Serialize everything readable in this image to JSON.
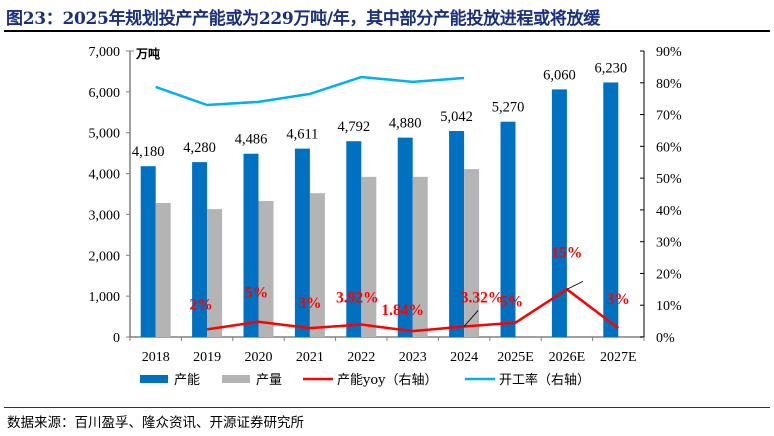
{
  "title": "图23：2025年规划投产产能或为229万吨/年，其中部分产能投放进程或将放缓",
  "source": "数据来源：百川盈孚、隆众资讯、开源证券研究所",
  "colors": {
    "capacity": "#0070c0",
    "output": "#b4b4b4",
    "yoy": "#ff0000",
    "utilization": "#00b0f0",
    "title": "#1a2f80"
  },
  "chart_data": {
    "type": "bar",
    "title": "2025年规划投产产能或为229万吨/年，其中部分产能投放进程或将放缓",
    "categories": [
      "2018",
      "2019",
      "2020",
      "2021",
      "2022",
      "2023",
      "2024",
      "2025E",
      "2026E",
      "2027E"
    ],
    "y_unit_label": "万吨",
    "ylim": [
      0,
      7000
    ],
    "y_ticks": [
      "0",
      "1,000",
      "2,000",
      "3,000",
      "4,000",
      "5,000",
      "6,000",
      "7,000"
    ],
    "y2lim": [
      0,
      90
    ],
    "y2_ticks": [
      "0%",
      "10%",
      "20%",
      "30%",
      "40%",
      "50%",
      "60%",
      "70%",
      "80%",
      "90%"
    ],
    "grid": false,
    "legend_position": "bottom",
    "series": [
      {
        "name": "产能",
        "type": "bar",
        "axis": "left",
        "values": [
          4180,
          4280,
          4486,
          4611,
          4792,
          4880,
          5042,
          5270,
          6060,
          6230
        ],
        "labels": [
          "4,180",
          "4,280",
          "4,486",
          "4,611",
          "4,792",
          "4,880",
          "5,042",
          "5,270",
          "6,060",
          "6,230"
        ]
      },
      {
        "name": "产量",
        "type": "bar",
        "axis": "left",
        "values": [
          3280,
          3130,
          3330,
          3520,
          3920,
          3920,
          4110,
          null,
          null,
          null
        ]
      },
      {
        "name": "产能yoy（右轴）",
        "type": "line",
        "axis": "right",
        "values": [
          null,
          2.4,
          4.8,
          2.8,
          3.92,
          1.84,
          3.32,
          4.5,
          15,
          2.8
        ],
        "labels": [
          null,
          "2%",
          "5%",
          "3%",
          "3.92%",
          "1.84%",
          "3.32%",
          "5%",
          "15%",
          "3%"
        ]
      },
      {
        "name": "开工率（右轴）",
        "type": "line",
        "axis": "right",
        "values": [
          78.7,
          73.0,
          74.0,
          76.5,
          81.8,
          80.3,
          81.5,
          null,
          null,
          null
        ]
      }
    ]
  }
}
